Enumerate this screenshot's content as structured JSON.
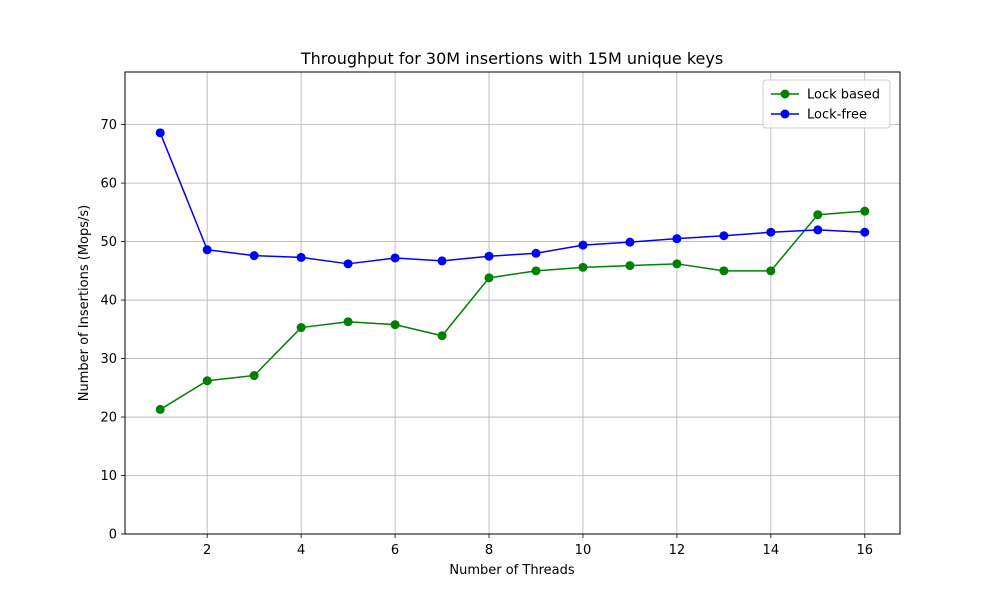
{
  "chart_data": {
    "type": "line",
    "title": "Throughput for 30M insertions with 15M unique keys",
    "xlabel": "Number of Threads",
    "ylabel": "Number of Insertions (Mops/s)",
    "xlim": [
      0.25,
      16.75
    ],
    "ylim": [
      0,
      79
    ],
    "xticks": [
      2,
      4,
      6,
      8,
      10,
      12,
      14,
      16
    ],
    "yticks": [
      0,
      10,
      20,
      30,
      40,
      50,
      60,
      70
    ],
    "grid": true,
    "legend_position": "top-right",
    "x": [
      1,
      2,
      3,
      4,
      5,
      6,
      7,
      8,
      9,
      10,
      11,
      12,
      13,
      14,
      15,
      16
    ],
    "series": [
      {
        "name": "Lock based",
        "color": "#008000",
        "values": [
          21.3,
          26.2,
          27.1,
          35.3,
          36.3,
          35.8,
          33.9,
          43.8,
          45.0,
          45.6,
          45.9,
          46.2,
          45.0,
          45.0,
          54.6,
          55.2
        ]
      },
      {
        "name": "Lock-free",
        "color": "#0000ff",
        "values": [
          68.6,
          48.6,
          47.6,
          47.3,
          46.2,
          47.2,
          46.7,
          47.5,
          48.0,
          49.4,
          49.9,
          50.5,
          51.0,
          51.6,
          52.0,
          51.6
        ]
      }
    ]
  }
}
